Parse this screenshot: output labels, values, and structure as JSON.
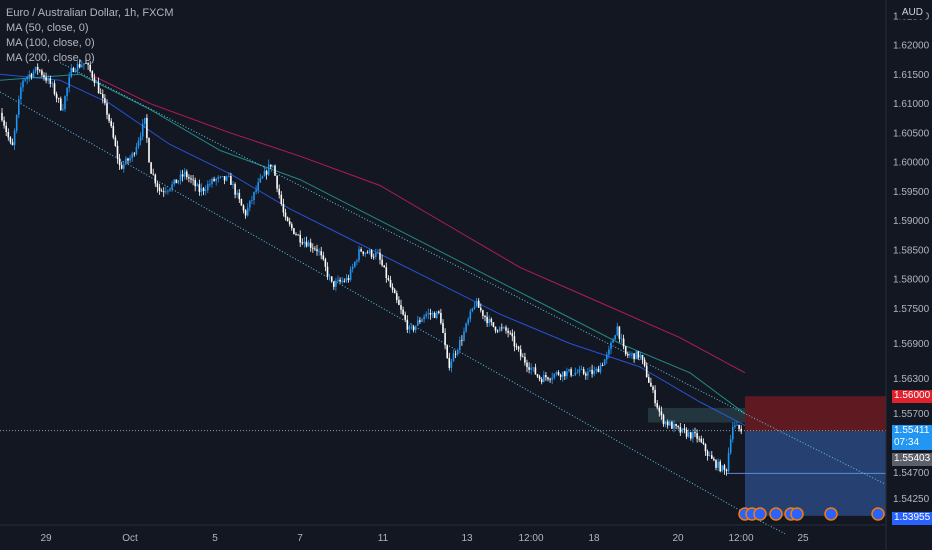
{
  "legend": {
    "symbol": "Euro / Australian Dollar, 1h, FXCM",
    "ma1": "MA (50, close, 0)",
    "ma2": "MA (100, close, 0)",
    "ma3": "MA (200, close, 0)"
  },
  "currency": "AUD",
  "price_tags": {
    "stop": "1.56000",
    "current": "1.55411",
    "countdown": "07:34",
    "entry": "1.55403",
    "target": "1.53955"
  },
  "colors": {
    "background": "#131722",
    "up": "#2196f3",
    "down": "#ffffff",
    "ma50": "#2962ff",
    "ma100": "#26a69a",
    "ma200": "#e91e63",
    "channel": "#5ec8f0",
    "stop_zone": "#8b1a1e",
    "target_zone": "#2f4f8f"
  },
  "chart_data": {
    "type": "candlestick",
    "symbol": "Euro / Australian Dollar, 1h, FXCM",
    "y_axis_labels": [
      "1.62500",
      "1.62000",
      "1.61500",
      "1.61000",
      "1.60500",
      "1.60000",
      "1.59500",
      "1.59000",
      "1.58500",
      "1.58000",
      "1.57500",
      "1.56900",
      "1.56300",
      "1.55700",
      "1.54700",
      "1.54250"
    ],
    "x_axis_labels": [
      "29",
      "Oct",
      "5",
      "7",
      "11",
      "13",
      "12:00",
      "18",
      "20",
      "12:00",
      "25"
    ],
    "ylim": [
      1.5385,
      1.6265
    ],
    "price_path": [
      [
        0,
        1.609
      ],
      [
        12,
        1.602
      ],
      [
        22,
        1.614
      ],
      [
        38,
        1.616
      ],
      [
        52,
        1.613
      ],
      [
        62,
        1.609
      ],
      [
        72,
        1.616
      ],
      [
        85,
        1.617
      ],
      [
        95,
        1.614
      ],
      [
        108,
        1.608
      ],
      [
        120,
        1.599
      ],
      [
        132,
        1.601
      ],
      [
        145,
        1.607
      ],
      [
        150,
        1.599
      ],
      [
        160,
        1.595
      ],
      [
        172,
        1.596
      ],
      [
        185,
        1.598
      ],
      [
        200,
        1.595
      ],
      [
        215,
        1.597
      ],
      [
        230,
        1.597
      ],
      [
        245,
        1.591
      ],
      [
        258,
        1.596
      ],
      [
        272,
        1.6
      ],
      [
        285,
        1.59
      ],
      [
        300,
        1.587
      ],
      [
        318,
        1.585
      ],
      [
        332,
        1.579
      ],
      [
        348,
        1.58
      ],
      [
        360,
        1.585
      ],
      [
        378,
        1.584
      ],
      [
        392,
        1.578
      ],
      [
        410,
        1.571
      ],
      [
        425,
        1.574
      ],
      [
        440,
        1.574
      ],
      [
        448,
        1.565
      ],
      [
        462,
        1.57
      ],
      [
        475,
        1.576
      ],
      [
        492,
        1.572
      ],
      [
        508,
        1.571
      ],
      [
        520,
        1.567
      ],
      [
        540,
        1.563
      ],
      [
        560,
        1.564
      ],
      [
        575,
        1.564
      ],
      [
        595,
        1.564
      ],
      [
        608,
        1.567
      ],
      [
        617,
        1.572
      ],
      [
        625,
        1.567
      ],
      [
        640,
        1.567
      ],
      [
        650,
        1.562
      ],
      [
        662,
        1.556
      ],
      [
        680,
        1.554
      ],
      [
        697,
        1.553
      ],
      [
        712,
        1.549
      ],
      [
        726,
        1.547
      ],
      [
        732,
        1.555
      ],
      [
        742,
        1.5541
      ]
    ],
    "ma50_path": [
      [
        0,
        1.615
      ],
      [
        60,
        1.614
      ],
      [
        110,
        1.61
      ],
      [
        170,
        1.603
      ],
      [
        230,
        1.598
      ],
      [
        290,
        1.592
      ],
      [
        360,
        1.586
      ],
      [
        430,
        1.58
      ],
      [
        500,
        1.574
      ],
      [
        570,
        1.569
      ],
      [
        640,
        1.565
      ],
      [
        700,
        1.559
      ],
      [
        745,
        1.555
      ]
    ],
    "ma100_path": [
      [
        0,
        1.614
      ],
      [
        80,
        1.615
      ],
      [
        150,
        1.609
      ],
      [
        220,
        1.602
      ],
      [
        300,
        1.597
      ],
      [
        380,
        1.59
      ],
      [
        460,
        1.583
      ],
      [
        540,
        1.576
      ],
      [
        620,
        1.569
      ],
      [
        690,
        1.564
      ],
      [
        745,
        1.557
      ]
    ],
    "ma200_path": [
      [
        90,
        1.615
      ],
      [
        150,
        1.61
      ],
      [
        230,
        1.605
      ],
      [
        300,
        1.601
      ],
      [
        380,
        1.596
      ],
      [
        450,
        1.589
      ],
      [
        520,
        1.582
      ],
      [
        600,
        1.576
      ],
      [
        680,
        1.57
      ],
      [
        745,
        1.564
      ]
    ],
    "channel_upper": [
      [
        60,
        1.617
      ],
      [
        745,
        1.557
      ],
      [
        885,
        1.545
      ]
    ],
    "channel_lower": [
      [
        0,
        1.612
      ],
      [
        745,
        1.54
      ],
      [
        785,
        1.5365
      ]
    ],
    "position": {
      "entry": 1.55403,
      "stop": 1.56,
      "target": 1.53955,
      "current": 1.55411
    },
    "grid": false,
    "legend": "top-left"
  }
}
